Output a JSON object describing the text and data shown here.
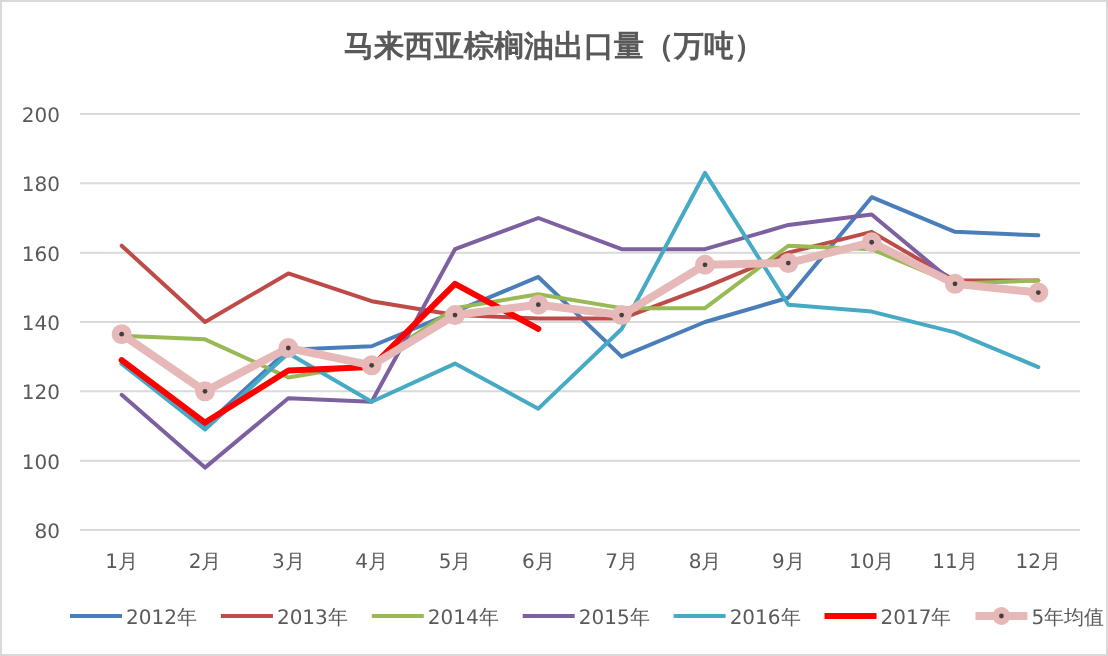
{
  "chart_data": {
    "type": "line",
    "title": "马来西亚棕榈油出口量（万吨）",
    "categories": [
      "1月",
      "2月",
      "3月",
      "4月",
      "5月",
      "6月",
      "7月",
      "8月",
      "9月",
      "10月",
      "11月",
      "12月"
    ],
    "ylim": [
      80,
      200
    ],
    "yticks": [
      80,
      100,
      120,
      140,
      160,
      180,
      200
    ],
    "grid": "y",
    "legend": "bottom",
    "line_style": "solid",
    "series": [
      {
        "name": "2012年",
        "color": "#4a7ebb",
        "marker": "none",
        "values": [
          128,
          110,
          132,
          133,
          143,
          153,
          130,
          140,
          147,
          176,
          166,
          165
        ]
      },
      {
        "name": "2013年",
        "color": "#be4b48",
        "marker": "none",
        "values": [
          162,
          140,
          154,
          146,
          142,
          141,
          141,
          150,
          160,
          166,
          152,
          152
        ]
      },
      {
        "name": "2014年",
        "color": "#98b954",
        "marker": "none",
        "values": [
          136,
          135,
          124,
          128,
          144,
          148,
          144,
          144,
          162,
          161,
          151,
          152
        ]
      },
      {
        "name": "2015年",
        "color": "#7d60a0",
        "marker": "none",
        "values": [
          119,
          98,
          118,
          117,
          161,
          170,
          161,
          161,
          168,
          171,
          151,
          149
        ]
      },
      {
        "name": "2016年",
        "color": "#46aac5",
        "marker": "none",
        "values": [
          128,
          109,
          131,
          117,
          128,
          115,
          138,
          183,
          145,
          143,
          137,
          127
        ]
      },
      {
        "name": "2017年",
        "color": "#ff0000",
        "marker": "none",
        "values": [
          129,
          111,
          126,
          127,
          151,
          138,
          null,
          null,
          null,
          null,
          null,
          null
        ]
      },
      {
        "name": "5年均值",
        "color": "#e6b9b8",
        "marker": "circle",
        "values": [
          136.5,
          120,
          132.5,
          127.5,
          142,
          145,
          142,
          156.5,
          157,
          163,
          151,
          148.5
        ]
      }
    ]
  }
}
